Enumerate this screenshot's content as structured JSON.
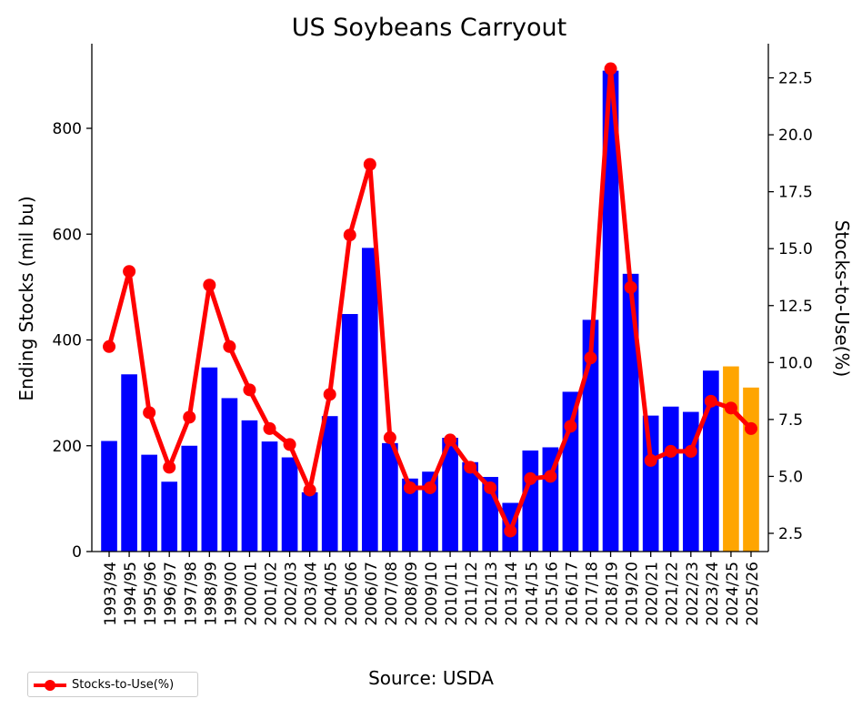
{
  "chart_data": {
    "type": "bar",
    "title": "US Soybeans Carryout",
    "ylabel": "Ending Stocks (mil bu)",
    "y2label": "Stocks-to-Use(%)",
    "ylim": [
      0,
      960
    ],
    "y2lim": [
      1.7,
      24.0
    ],
    "yticks": [
      0,
      200,
      400,
      600,
      800
    ],
    "y2ticks": [
      2.5,
      5.0,
      7.5,
      10.0,
      12.5,
      15.0,
      17.5,
      20.0,
      22.5
    ],
    "grid": false,
    "legend_position": "bottom-left",
    "categories": [
      "1993/94",
      "1994/95",
      "1995/96",
      "1996/97",
      "1997/98",
      "1998/99",
      "1999/00",
      "2000/01",
      "2001/02",
      "2002/03",
      "2003/04",
      "2004/05",
      "2005/06",
      "2006/07",
      "2007/08",
      "2008/09",
      "2009/10",
      "2010/11",
      "2011/12",
      "2012/13",
      "2013/14",
      "2014/15",
      "2015/16",
      "2016/17",
      "2017/18",
      "2018/19",
      "2019/20",
      "2020/21",
      "2021/22",
      "2022/23",
      "2023/24",
      "2024/25",
      "2025/26"
    ],
    "series": [
      {
        "chart": "bar",
        "axis": "left",
        "values": [
          209,
          335,
          183,
          132,
          200,
          348,
          290,
          248,
          208,
          178,
          112,
          256,
          449,
          574,
          205,
          138,
          151,
          215,
          169,
          141,
          92,
          191,
          197,
          302,
          438,
          909,
          525,
          257,
          274,
          264,
          342,
          350,
          310
        ],
        "colors": [
          "#0000ff",
          "#0000ff",
          "#0000ff",
          "#0000ff",
          "#0000ff",
          "#0000ff",
          "#0000ff",
          "#0000ff",
          "#0000ff",
          "#0000ff",
          "#0000ff",
          "#0000ff",
          "#0000ff",
          "#0000ff",
          "#0000ff",
          "#0000ff",
          "#0000ff",
          "#0000ff",
          "#0000ff",
          "#0000ff",
          "#0000ff",
          "#0000ff",
          "#0000ff",
          "#0000ff",
          "#0000ff",
          "#0000ff",
          "#0000ff",
          "#0000ff",
          "#0000ff",
          "#0000ff",
          "#0000ff",
          "#ffa500",
          "#ffa500"
        ]
      },
      {
        "name": "Stocks-to-Use(%)",
        "chart": "line",
        "axis": "right",
        "color": "#ff0000",
        "values": [
          10.7,
          14.0,
          7.8,
          5.4,
          7.6,
          13.4,
          10.7,
          8.8,
          7.1,
          6.4,
          4.4,
          8.6,
          15.6,
          18.7,
          6.7,
          4.5,
          4.5,
          6.6,
          5.4,
          4.5,
          2.6,
          4.9,
          5.0,
          7.2,
          10.2,
          22.9,
          13.3,
          5.7,
          6.1,
          6.1,
          8.3,
          8.0,
          7.1
        ]
      }
    ]
  },
  "source_text": "Source: USDA",
  "legend": {
    "label": "Stocks-to-Use(%)"
  }
}
